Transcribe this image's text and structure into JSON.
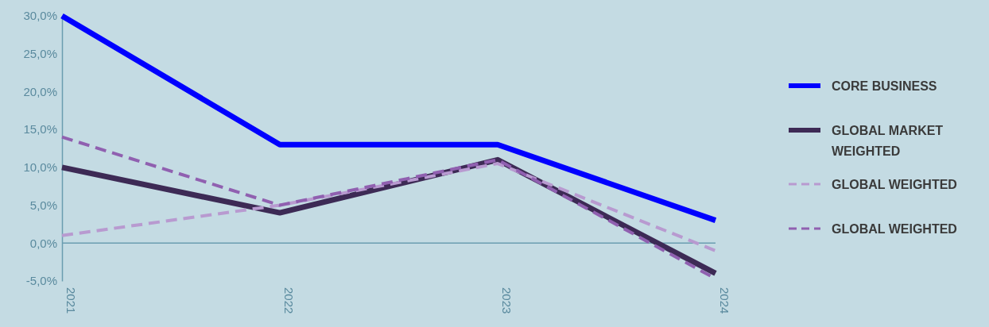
{
  "chart_data": {
    "type": "line",
    "categories": [
      "2021",
      "2022",
      "2023",
      "2024"
    ],
    "ylim": [
      -5,
      30
    ],
    "yticks": [
      {
        "value": -5,
        "label": "-5,0%"
      },
      {
        "value": 0,
        "label": "0,0%"
      },
      {
        "value": 5,
        "label": "5,0%"
      },
      {
        "value": 10,
        "label": "10,0%"
      },
      {
        "value": 15,
        "label": "15,0%"
      },
      {
        "value": 20,
        "label": "20,0%"
      },
      {
        "value": 25,
        "label": "25,0%"
      },
      {
        "value": 30,
        "label": "30,0%"
      }
    ],
    "legend": "right",
    "ref_lines": [
      {
        "axis": "y",
        "value": 0,
        "color": "#6a9db0"
      }
    ],
    "marker": "none",
    "series": [
      {
        "name": "CORE BUSINESS",
        "color": "#0000ff",
        "line_style": "solid",
        "values": [
          30,
          13,
          13,
          3
        ]
      },
      {
        "name": "GLOBAL MARKET WEIGHTED",
        "color": "#3d2a55",
        "line_style": "solid",
        "values": [
          10,
          4,
          11,
          -4
        ]
      },
      {
        "name": "GLOBAL WEIGHTED",
        "color": "#b89ad0",
        "line_style": "dashed",
        "values": [
          1,
          5,
          10.5,
          -1
        ]
      },
      {
        "name": "GLOBAL WEIGHTED",
        "color": "#9060b0",
        "line_style": "dashed",
        "values": [
          14,
          5,
          11,
          -4.7
        ]
      }
    ]
  }
}
